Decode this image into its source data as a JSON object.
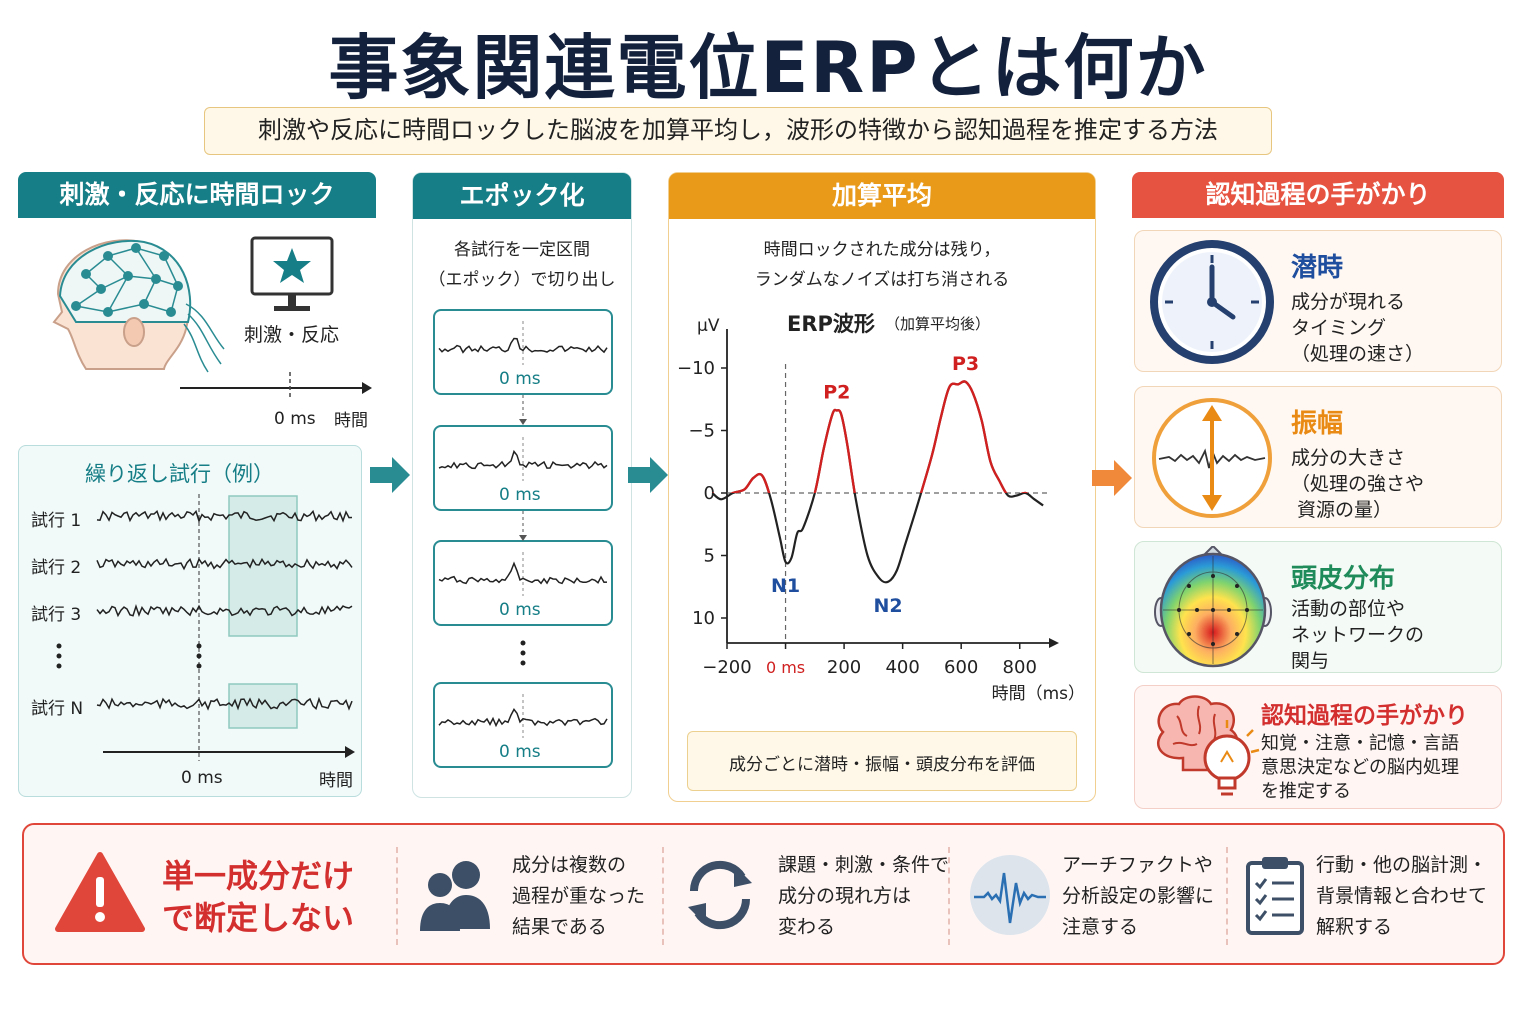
{
  "title": "事象関連電位ERPとは何か",
  "subtitle": "刺激や反応に時間ロックした脳波を加算平均し，波形の特徴から認知過程を推定する方法",
  "panel1": {
    "header": "刺激・反応に時間ロック",
    "stimulus_label": "刺激・反応",
    "zero_label": "0 ms",
    "time_label": "時間",
    "trials_title": "繰り返し試行（例）",
    "trials": [
      "試行 1",
      "試行 2",
      "試行 3",
      "試行 N"
    ],
    "zero_label2": "0 ms",
    "time_label2": "時間"
  },
  "panel2": {
    "header": "エポック化",
    "desc_line1": "各試行を一定区間",
    "desc_line2": "（エポック）で切り出し",
    "epoch_zero": [
      "0 ms",
      "0 ms",
      "0 ms",
      "0 ms"
    ]
  },
  "panel3": {
    "header": "加算平均",
    "desc_line1": "時間ロックされた成分は残り，",
    "desc_line2": "ランダムなノイズは打ち消される",
    "footer": "成分ごとに潜時・振幅・頭皮分布を評価"
  },
  "chart_data": {
    "type": "line",
    "title": "ERP波形",
    "subtitle": "（加算平均後）",
    "xlabel": "時間（ms）",
    "ylabel": "μV",
    "xlim": [
      -200,
      900
    ],
    "ylim": [
      12,
      -12
    ],
    "y_inverted": true,
    "x_ticks": [
      "−200",
      "0 ms",
      "200",
      "400",
      "600",
      "800"
    ],
    "x_tick_values": [
      -200,
      0,
      200,
      400,
      600,
      800
    ],
    "y_ticks": [
      "−10",
      "−5",
      "0",
      "5",
      "10"
    ],
    "y_tick_values": [
      -10,
      -5,
      0,
      5,
      10
    ],
    "series": [
      {
        "x": [
          -250,
          -220,
          -180,
          -140,
          -110,
          -80,
          -50,
          -20,
          0,
          20,
          40,
          60,
          100,
          130,
          160,
          175,
          190,
          210,
          240,
          280,
          320,
          350,
          380,
          410,
          450,
          500,
          530,
          560,
          590,
          615,
          640,
          670,
          700,
          730,
          760,
          790,
          820,
          850,
          880
        ],
        "y": [
          0,
          0.5,
          0,
          -0.3,
          -1.2,
          -1.4,
          0.5,
          3.5,
          5.5,
          5.2,
          3.2,
          2.8,
          0,
          -3.5,
          -6.3,
          -6.6,
          -6.3,
          -4,
          0.5,
          5,
          6.8,
          7.1,
          6.2,
          4,
          1,
          -3,
          -6,
          -8.5,
          -8.7,
          -8.9,
          -8,
          -5.8,
          -2.5,
          -1,
          0.2,
          0.2,
          0,
          0.5,
          1
        ]
      }
    ],
    "peaks": [
      {
        "label": "N1",
        "x": 0,
        "y": 5.5,
        "color": "#1f4e9e"
      },
      {
        "label": "P2",
        "x": 175,
        "y": -6.6,
        "color": "#d02020"
      },
      {
        "label": "N2",
        "x": 350,
        "y": 7.1,
        "color": "#1f4e9e"
      },
      {
        "label": "P3",
        "x": 615,
        "y": -8.9,
        "color": "#d02020"
      }
    ]
  },
  "panel4": {
    "header": "認知過程の手がかり",
    "cards": [
      {
        "title": "潜時",
        "desc": "成分が現れる\nタイミング\n（処理の速さ）",
        "color": "#1f4e9e",
        "icon": "clock-icon"
      },
      {
        "title": "振幅",
        "desc": "成分の大きさ\n（処理の強さや\n 資源の量）",
        "color": "#e98a14",
        "icon": "amplitude-icon"
      },
      {
        "title": "頭皮分布",
        "desc": "活動の部位や\nネットワークの\n関与",
        "color": "#1f8a5a",
        "icon": "scalp-map-icon"
      },
      {
        "title": "認知過程の手がかり",
        "desc": "知覚・注意・記憶・言語\n意思決定などの脳内処理\nを推定する",
        "color": "#d32f2f",
        "icon": "brain-bulb-icon"
      }
    ]
  },
  "bottom": {
    "warning": "単一成分だけ\nで断定しない",
    "items": [
      {
        "text": "成分は複数の\n過程が重なった\n結果である",
        "icon": "people-icon"
      },
      {
        "text": "課題・刺激・条件で\n成分の現れ方は\n変わる",
        "icon": "cycle-icon"
      },
      {
        "text": "アーチファクトや\n分析設定の影響に\n注意する",
        "icon": "signal-icon"
      },
      {
        "text": "行動・他の脳計測・\n背景情報と合わせて\n解釈する",
        "icon": "clipboard-icon"
      }
    ]
  },
  "colors": {
    "teal": "#167e86",
    "orange": "#e89a18",
    "red": "#e65340",
    "navy": "#14213d"
  }
}
